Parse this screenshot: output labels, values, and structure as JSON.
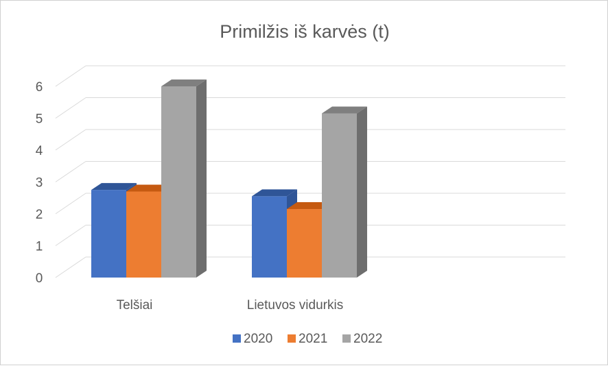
{
  "chart_data": {
    "type": "bar",
    "title": "Primilžis iš karvės (t)",
    "categories": [
      "Telšiai",
      "Lietuvos vidurkis"
    ],
    "series": [
      {
        "name": "2020",
        "values": [
          2.75,
          2.55
        ],
        "color": "#4472C4",
        "top": "#2F5597",
        "side": "#2F5597"
      },
      {
        "name": "2021",
        "values": [
          2.7,
          2.15
        ],
        "color": "#ED7D31",
        "top": "#C55A11",
        "side": "#C55A11"
      },
      {
        "name": "2022",
        "values": [
          6.0,
          5.15
        ],
        "color": "#A5A5A5",
        "top": "#7F7F7F",
        "side": "#6E6E6E"
      }
    ],
    "yticks": [
      "0",
      "1",
      "2",
      "3",
      "4",
      "5",
      "6"
    ],
    "ylim": [
      0,
      6
    ],
    "grid": true,
    "legend_position": "bottom"
  }
}
